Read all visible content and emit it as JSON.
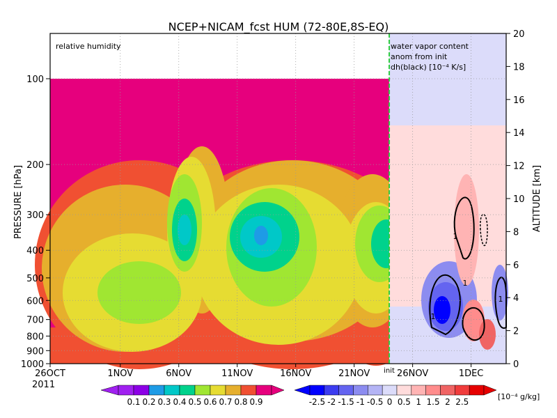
{
  "chart_data": {
    "type": "heatmap",
    "title": "NCEP+NICAM_fcst HUM (72-80E,8S-EQ)",
    "left_panel_label": "relative humidity",
    "right_panel_label": [
      "water vapor content",
      "anom from init",
      "dh(black) [10⁻⁴ K/s]"
    ],
    "init_label": "init",
    "xlabel_year": "2011",
    "ylabel_left": "PRESSURE [hPa]",
    "ylabel_right": "ALTITUDE [km]",
    "pressure_ticks": [
      "100",
      "200",
      "300",
      "400",
      "500",
      "600",
      "700",
      "800",
      "900",
      "1000"
    ],
    "pressure_values": [
      100,
      200,
      300,
      400,
      500,
      600,
      700,
      800,
      900,
      1000
    ],
    "ylim_pressure": [
      1000,
      100
    ],
    "altitude_ticks": [
      "0",
      "2",
      "4",
      "6",
      "8",
      "10",
      "12",
      "14",
      "16",
      "18",
      "20"
    ],
    "altitude_values": [
      0,
      2,
      4,
      6,
      8,
      10,
      12,
      14,
      16,
      18,
      20
    ],
    "ylim_altitude": [
      0,
      20
    ],
    "x_ticks": [
      "26OCT",
      "1NOV",
      "6NOV",
      "11NOV",
      "16NOV",
      "21NOV",
      "26NOV",
      "1DEC"
    ],
    "x_dates": [
      "2011-10-26",
      "2011-11-01",
      "2011-11-06",
      "2011-11-11",
      "2011-11-16",
      "2011-11-21",
      "2011-11-26",
      "2011-12-01"
    ],
    "xlim": [
      "2011-10-26",
      "2011-12-04"
    ],
    "init_date": "2011-11-24",
    "contour_label": "1",
    "grid": true,
    "colorbar_rh": {
      "levels": [
        "0.1",
        "0.2",
        "0.3",
        "0.4",
        "0.5",
        "0.6",
        "0.7",
        "0.8",
        "0.9"
      ],
      "colors": [
        "#a020f0",
        "#8c00e6",
        "#1e9be6",
        "#00c8c8",
        "#00d28c",
        "#a0e632",
        "#e6dc32",
        "#e6af2d",
        "#f05032",
        "#e6007d"
      ]
    },
    "colorbar_anom": {
      "levels": [
        "-2.5",
        "-2",
        "-1.5",
        "-1",
        "-0.5",
        "0",
        "0.5",
        "1",
        "1.5",
        "2",
        "2.5"
      ],
      "unit": "[10⁻⁴ g/kg]",
      "colors": [
        "#0000ff",
        "#3c3cf0",
        "#6464f0",
        "#8c8cf0",
        "#b4b4f5",
        "#dcdcfa",
        "#ffdcdc",
        "#ffb4b4",
        "#ff8c8c",
        "#f06464",
        "#f03c3c",
        "#e60000"
      ]
    }
  }
}
